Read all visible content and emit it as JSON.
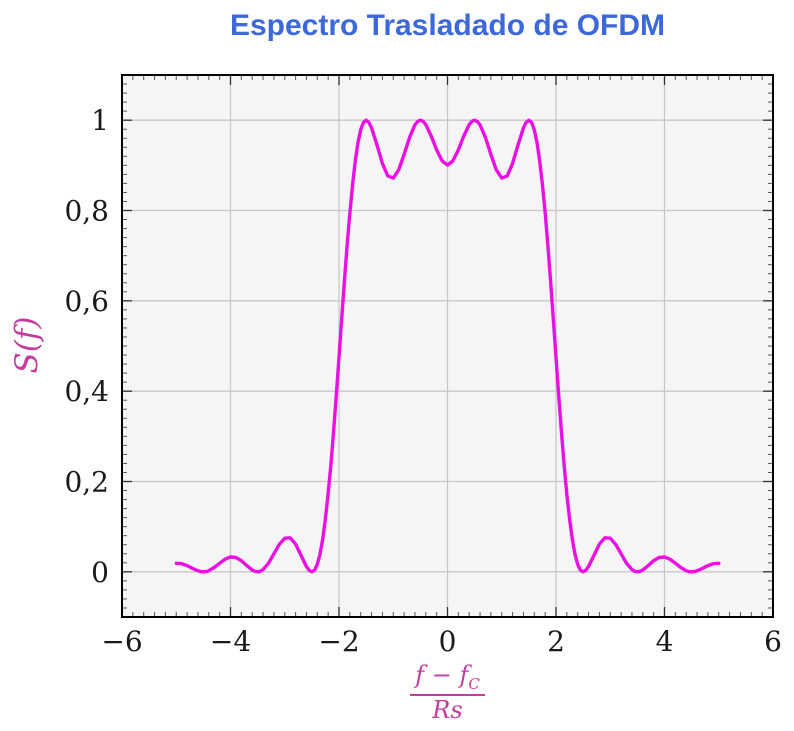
{
  "page": {
    "title": "Espectro Trasladado de OFDM"
  },
  "colors": {
    "title": "#3D68D9",
    "curve": "#EA10E3",
    "math_label": "#C43C9E",
    "grid": "#C8C8C8",
    "plot_bg": "#F6F5F6",
    "frame": "#000000",
    "tick_text": "#1A1A1A",
    "major_tick": "#333333",
    "minor_tick": "#555555"
  },
  "chart_data": {
    "type": "line",
    "title": "Espectro Trasladado de OFDM",
    "ylabel": "S(f)",
    "xlabel": "(f − f_C) / Rs",
    "xlabel_parts": {
      "num_main": "f − f",
      "num_sub": "C",
      "den": "Rs"
    },
    "xlim": [
      -6,
      6
    ],
    "ylim": [
      -0.1,
      1.1
    ],
    "x_major_ticks": {
      "values": [
        -6,
        -4,
        -2,
        0,
        2,
        4,
        6
      ],
      "labels": [
        "−6",
        "−4",
        "−2",
        "0",
        "2",
        "4",
        "6"
      ]
    },
    "y_major_ticks": {
      "values": [
        0,
        0.2,
        0.4,
        0.6,
        0.8,
        1
      ],
      "labels": [
        "0",
        "0,2",
        "0,4",
        "0,6",
        "0,8",
        "1"
      ]
    },
    "x_minor_step": 0.2,
    "y_minor_step": 0.02,
    "grid": "major-only",
    "legend": "none",
    "series": [
      {
        "name": "S(f)",
        "color": "#EA10E3",
        "points": [
          [
            -5,
            0.019
          ],
          [
            -4.9,
            0.018
          ],
          [
            -4.8,
            0.0137
          ],
          [
            -4.7,
            0.0076
          ],
          [
            -4.6,
            0.0022
          ],
          [
            -4.55,
            0.0006
          ],
          [
            -4.5,
            0
          ],
          [
            -4.45,
            0.0006
          ],
          [
            -4.4,
            0.0025
          ],
          [
            -4.3,
            0.0095
          ],
          [
            -4.2,
            0.019
          ],
          [
            -4.1,
            0.0279
          ],
          [
            -4,
            0.0328
          ],
          [
            -3.9,
            0.0317
          ],
          [
            -3.8,
            0.0246
          ],
          [
            -3.7,
            0.0139
          ],
          [
            -3.6,
            0.0041
          ],
          [
            -3.55,
            0.0011
          ],
          [
            -3.5,
            0
          ],
          [
            -3.45,
            0.0012
          ],
          [
            -3.4,
            0.0049
          ],
          [
            -3.3,
            0.0192
          ],
          [
            -3.2,
            0.0399
          ],
          [
            -3.1,
            0.0608
          ],
          [
            -3,
            0.0745
          ],
          [
            -2.9,
            0.0753
          ],
          [
            -2.8,
            0.0615
          ],
          [
            -2.7,
            0.0369
          ],
          [
            -2.6,
            0.0118
          ],
          [
            -2.55,
            0.0033
          ],
          [
            -2.5,
            0
          ],
          [
            -2.45,
            0.0038
          ],
          [
            -2.4,
            0.0164
          ],
          [
            -2.35,
            0.039
          ],
          [
            -2.3,
            0.0724
          ],
          [
            -2.25,
            0.1169
          ],
          [
            -2.2,
            0.1722
          ],
          [
            -2.15,
            0.2375
          ],
          [
            -2.1,
            0.311
          ],
          [
            -2.05,
            0.3909
          ],
          [
            -2,
            0.4748
          ],
          [
            -1.95,
            0.5599
          ],
          [
            -1.9,
            0.6434
          ],
          [
            -1.85,
            0.7225
          ],
          [
            -1.8,
            0.7947
          ],
          [
            -1.75,
            0.8578
          ],
          [
            -1.7,
            0.9101
          ],
          [
            -1.65,
            0.9505
          ],
          [
            -1.6,
            0.9787
          ],
          [
            -1.55,
            0.9948
          ],
          [
            -1.5,
            1
          ],
          [
            -1.45,
            0.9954
          ],
          [
            -1.4,
            0.9833
          ],
          [
            -1.3,
            0.9451
          ],
          [
            -1.2,
            0.9042
          ],
          [
            -1.1,
            0.8767
          ],
          [
            -1,
            0.8718
          ],
          [
            -0.9,
            0.8901
          ],
          [
            -0.8,
            0.924
          ],
          [
            -0.7,
            0.9614
          ],
          [
            -0.6,
            0.9897
          ],
          [
            -0.55,
            0.9973
          ],
          [
            -0.5,
            1
          ],
          [
            -0.45,
            0.9974
          ],
          [
            -0.4,
            0.9902
          ],
          [
            -0.3,
            0.965
          ],
          [
            -0.2,
            0.9344
          ],
          [
            -0.1,
            0.9099
          ],
          [
            0,
            0.9006
          ],
          [
            0.1,
            0.9099
          ],
          [
            0.2,
            0.9344
          ],
          [
            0.3,
            0.965
          ],
          [
            0.4,
            0.9902
          ],
          [
            0.45,
            0.9974
          ],
          [
            0.5,
            1
          ],
          [
            0.55,
            0.9973
          ],
          [
            0.6,
            0.9897
          ],
          [
            0.7,
            0.9614
          ],
          [
            0.8,
            0.924
          ],
          [
            0.9,
            0.8901
          ],
          [
            1,
            0.8718
          ],
          [
            1.1,
            0.8767
          ],
          [
            1.2,
            0.9042
          ],
          [
            1.3,
            0.9451
          ],
          [
            1.4,
            0.9833
          ],
          [
            1.45,
            0.9954
          ],
          [
            1.5,
            1
          ],
          [
            1.55,
            0.9948
          ],
          [
            1.6,
            0.9787
          ],
          [
            1.65,
            0.9505
          ],
          [
            1.7,
            0.9101
          ],
          [
            1.75,
            0.8578
          ],
          [
            1.8,
            0.7947
          ],
          [
            1.85,
            0.7225
          ],
          [
            1.9,
            0.6434
          ],
          [
            1.95,
            0.5599
          ],
          [
            2,
            0.4748
          ],
          [
            2.05,
            0.3909
          ],
          [
            2.1,
            0.311
          ],
          [
            2.15,
            0.2375
          ],
          [
            2.2,
            0.1722
          ],
          [
            2.25,
            0.1169
          ],
          [
            2.3,
            0.0724
          ],
          [
            2.35,
            0.039
          ],
          [
            2.4,
            0.0164
          ],
          [
            2.45,
            0.0038
          ],
          [
            2.5,
            0
          ],
          [
            2.55,
            0.0033
          ],
          [
            2.6,
            0.0118
          ],
          [
            2.7,
            0.0369
          ],
          [
            2.8,
            0.0615
          ],
          [
            2.9,
            0.0753
          ],
          [
            3,
            0.0745
          ],
          [
            3.1,
            0.0608
          ],
          [
            3.2,
            0.0399
          ],
          [
            3.3,
            0.0192
          ],
          [
            3.4,
            0.0049
          ],
          [
            3.45,
            0.0012
          ],
          [
            3.5,
            0
          ],
          [
            3.55,
            0.0011
          ],
          [
            3.6,
            0.0041
          ],
          [
            3.7,
            0.0139
          ],
          [
            3.8,
            0.0246
          ],
          [
            3.9,
            0.0317
          ],
          [
            4,
            0.0328
          ],
          [
            4.1,
            0.0279
          ],
          [
            4.2,
            0.019
          ],
          [
            4.3,
            0.0095
          ],
          [
            4.4,
            0.0025
          ],
          [
            4.45,
            0.0006
          ],
          [
            4.5,
            0
          ],
          [
            4.55,
            0.0006
          ],
          [
            4.6,
            0.0022
          ],
          [
            4.7,
            0.0076
          ],
          [
            4.8,
            0.0137
          ],
          [
            4.9,
            0.018
          ],
          [
            5,
            0.019
          ]
        ]
      }
    ]
  }
}
